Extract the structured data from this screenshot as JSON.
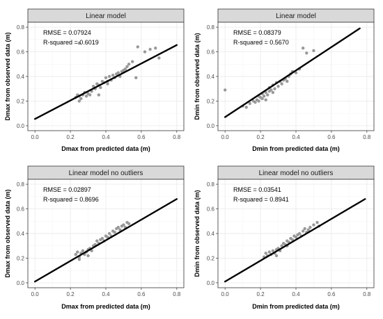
{
  "colors": {
    "strip_fill": "#d9d9d9",
    "strip_border": "#333333",
    "panel_border": "#333333",
    "grid_major": "#ebebeb",
    "grid_minor": "#f5f5f5",
    "point": "#999999",
    "line": "#000000"
  },
  "chart_data": [
    {
      "type": "scatter",
      "title": "Linear model",
      "xlabel": "Dmax from predicted data (m)",
      "ylabel": "Dmax from observed data (m)",
      "xlim": [
        -0.04,
        0.84
      ],
      "ylim": [
        -0.04,
        0.84
      ],
      "xticks": [
        "0.0",
        "0.2",
        "0.4",
        "0.6",
        "0.8"
      ],
      "yticks": [
        "0.0",
        "0.2",
        "0.4",
        "0.6",
        "0.8"
      ],
      "annotations": [
        "RMSE = 0.07924",
        "R-squared = 0.6019"
      ],
      "fit_line": {
        "x": [
          0.0,
          0.8
        ],
        "y": [
          0.055,
          0.655
        ]
      },
      "points": {
        "x": [
          0.23,
          0.24,
          0.25,
          0.25,
          0.26,
          0.27,
          0.28,
          0.29,
          0.3,
          0.31,
          0.32,
          0.33,
          0.34,
          0.35,
          0.36,
          0.37,
          0.38,
          0.39,
          0.4,
          0.41,
          0.42,
          0.43,
          0.44,
          0.45,
          0.46,
          0.47,
          0.48,
          0.49,
          0.5,
          0.51,
          0.52,
          0.53,
          0.55,
          0.57,
          0.58,
          0.62,
          0.65,
          0.68,
          0.7,
          0.25,
          0.36,
          0.41
        ],
        "y": [
          0.23,
          0.25,
          0.2,
          0.24,
          0.22,
          0.25,
          0.27,
          0.24,
          0.26,
          0.25,
          0.28,
          0.32,
          0.3,
          0.34,
          0.33,
          0.31,
          0.36,
          0.35,
          0.39,
          0.36,
          0.4,
          0.37,
          0.41,
          0.39,
          0.42,
          0.43,
          0.4,
          0.44,
          0.45,
          0.46,
          0.48,
          0.5,
          0.52,
          0.39,
          0.64,
          0.6,
          0.62,
          0.63,
          0.55,
          0.67,
          0.25,
          0.34
        ]
      }
    },
    {
      "type": "scatter",
      "title": "Linear model",
      "xlabel": "Dmin from predicted data (m)",
      "ylabel": "Dmin from observed data (m)",
      "xlim": [
        -0.04,
        0.84
      ],
      "ylim": [
        -0.04,
        0.84
      ],
      "xticks": [
        "0.0",
        "0.2",
        "0.4",
        "0.6",
        "0.8"
      ],
      "yticks": [
        "0.0",
        "0.2",
        "0.4",
        "0.6",
        "0.8"
      ],
      "annotations": [
        "RMSE = 0.08379",
        "R-squared = 0.5670"
      ],
      "fit_line": {
        "x": [
          0.0,
          0.76
        ],
        "y": [
          0.07,
          0.79
        ]
      },
      "points": {
        "x": [
          0.0,
          0.1,
          0.12,
          0.14,
          0.16,
          0.17,
          0.18,
          0.19,
          0.2,
          0.21,
          0.21,
          0.22,
          0.23,
          0.24,
          0.25,
          0.25,
          0.26,
          0.27,
          0.28,
          0.29,
          0.3,
          0.31,
          0.32,
          0.33,
          0.34,
          0.35,
          0.36,
          0.37,
          0.38,
          0.4,
          0.42,
          0.44,
          0.46,
          0.5,
          0.19,
          0.23,
          0.27
        ],
        "y": [
          0.29,
          0.16,
          0.15,
          0.18,
          0.2,
          0.19,
          0.21,
          0.2,
          0.23,
          0.22,
          0.26,
          0.24,
          0.27,
          0.25,
          0.28,
          0.31,
          0.29,
          0.33,
          0.3,
          0.35,
          0.32,
          0.36,
          0.34,
          0.37,
          0.38,
          0.36,
          0.4,
          0.42,
          0.44,
          0.43,
          0.46,
          0.63,
          0.59,
          0.61,
          0.24,
          0.21,
          0.27
        ]
      }
    },
    {
      "type": "scatter",
      "title": "Linear model no outliers",
      "xlabel": "Dmax from predicted data (m)",
      "ylabel": "Dmax from observed data (m)",
      "xlim": [
        -0.04,
        0.84
      ],
      "ylim": [
        -0.04,
        0.84
      ],
      "xticks": [
        "0.0",
        "0.2",
        "0.4",
        "0.6",
        "0.8"
      ],
      "yticks": [
        "0.0",
        "0.2",
        "0.4",
        "0.6",
        "0.8"
      ],
      "annotations": [
        "RMSE = 0.02897",
        "R-squared = 0.8696"
      ],
      "fit_line": {
        "x": [
          0.0,
          0.8
        ],
        "y": [
          0.01,
          0.68
        ]
      },
      "points": {
        "x": [
          0.23,
          0.24,
          0.25,
          0.26,
          0.27,
          0.28,
          0.29,
          0.3,
          0.31,
          0.32,
          0.33,
          0.34,
          0.35,
          0.36,
          0.37,
          0.38,
          0.39,
          0.4,
          0.41,
          0.42,
          0.43,
          0.44,
          0.45,
          0.46,
          0.47,
          0.48,
          0.49,
          0.5,
          0.51,
          0.52,
          0.53,
          0.25,
          0.3
        ],
        "y": [
          0.23,
          0.25,
          0.21,
          0.24,
          0.26,
          0.23,
          0.25,
          0.27,
          0.28,
          0.26,
          0.3,
          0.31,
          0.34,
          0.32,
          0.35,
          0.36,
          0.34,
          0.38,
          0.37,
          0.4,
          0.38,
          0.42,
          0.41,
          0.44,
          0.45,
          0.43,
          0.46,
          0.47,
          0.45,
          0.49,
          0.48,
          0.19,
          0.22
        ]
      }
    },
    {
      "type": "scatter",
      "title": "Linear model no outliers",
      "xlabel": "Dmin from predicted data (m)",
      "ylabel": "Dmin from observed data (m)",
      "xlim": [
        -0.04,
        0.84
      ],
      "ylim": [
        -0.04,
        0.84
      ],
      "xticks": [
        "0.0",
        "0.2",
        "0.4",
        "0.6",
        "0.8"
      ],
      "yticks": [
        "0.0",
        "0.2",
        "0.4",
        "0.6",
        "0.8"
      ],
      "annotations": [
        "RMSE = 0.03541",
        "R-squared = 0.8941"
      ],
      "fit_line": {
        "x": [
          0.0,
          0.79
        ],
        "y": [
          0.01,
          0.68
        ]
      },
      "points": {
        "x": [
          0.22,
          0.23,
          0.24,
          0.25,
          0.26,
          0.27,
          0.28,
          0.29,
          0.3,
          0.31,
          0.32,
          0.33,
          0.34,
          0.35,
          0.36,
          0.37,
          0.38,
          0.39,
          0.4,
          0.41,
          0.42,
          0.43,
          0.44,
          0.45,
          0.46,
          0.47,
          0.48,
          0.5,
          0.52,
          0.53,
          0.29,
          0.35
        ],
        "y": [
          0.21,
          0.24,
          0.22,
          0.25,
          0.23,
          0.26,
          0.24,
          0.27,
          0.28,
          0.26,
          0.3,
          0.32,
          0.31,
          0.34,
          0.33,
          0.36,
          0.35,
          0.38,
          0.37,
          0.39,
          0.4,
          0.38,
          0.42,
          0.44,
          0.41,
          0.43,
          0.45,
          0.47,
          0.49,
          0.46,
          0.22,
          0.3
        ]
      }
    }
  ]
}
